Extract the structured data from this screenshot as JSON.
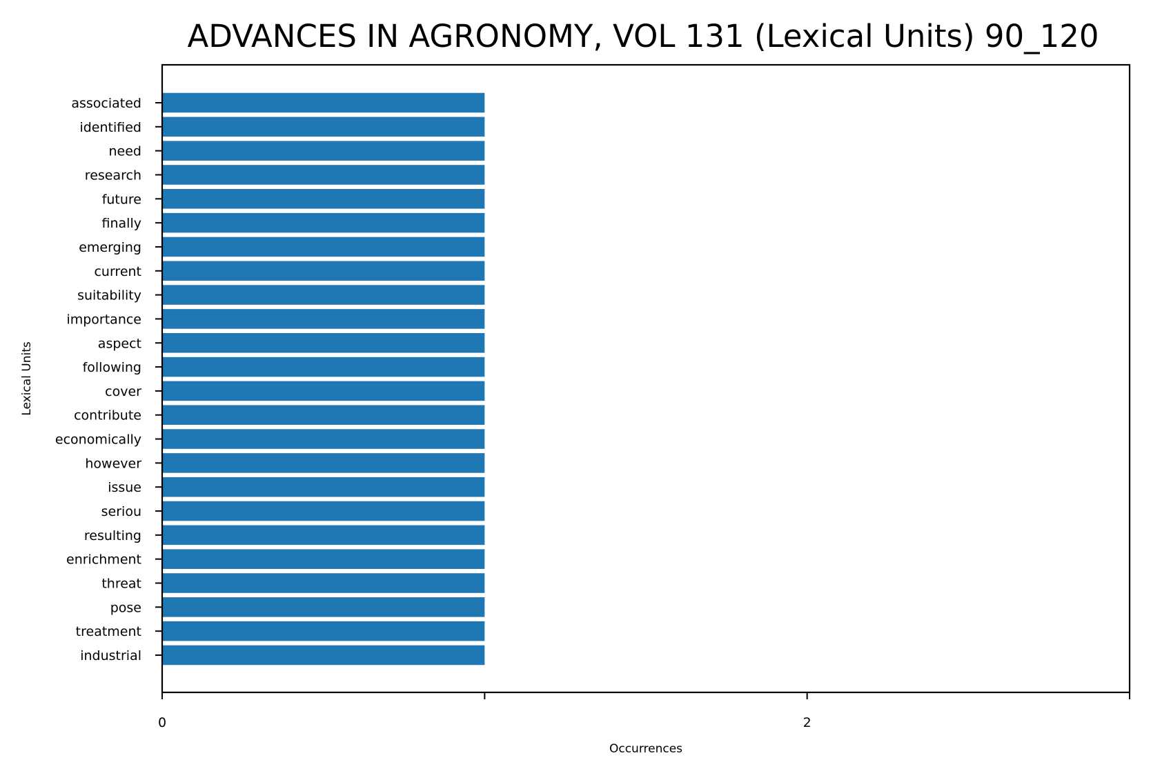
{
  "chart_data": {
    "type": "bar",
    "orientation": "horizontal",
    "title": "ADVANCES IN AGRONOMY, VOL 131 (Lexical Units) 90_120",
    "xlabel": "Occurrences",
    "ylabel": "Lexical Units",
    "xlim": [
      0,
      3
    ],
    "xticks": [
      0,
      1,
      2,
      3
    ],
    "xtick_labels": [
      "0",
      "",
      "2",
      ""
    ],
    "categories": [
      "associated",
      "identified",
      "need",
      "research",
      "future",
      "finally",
      "emerging",
      "current",
      "suitability",
      "importance",
      "aspect",
      "following",
      "cover",
      "contribute",
      "economically",
      "however",
      "issue",
      "seriou",
      "resulting",
      "enrichment",
      "threat",
      "pose",
      "treatment",
      "industrial"
    ],
    "values": [
      1,
      1,
      1,
      1,
      1,
      1,
      1,
      1,
      1,
      1,
      1,
      1,
      1,
      1,
      1,
      1,
      1,
      1,
      1,
      1,
      1,
      1,
      1,
      1
    ],
    "bar_color": "#1f77b4",
    "grid": false,
    "legend": "none"
  }
}
